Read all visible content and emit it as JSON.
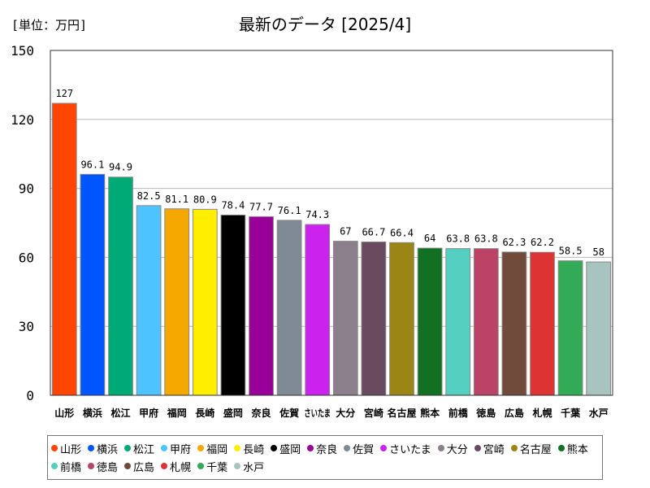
{
  "unit_label": "[単位：万円]",
  "chart_data": {
    "type": "bar",
    "title": "最新のデータ [2025/4]",
    "xlabel": "",
    "ylabel": "",
    "ylim": [
      0,
      150
    ],
    "yticks": [
      0,
      30,
      60,
      90,
      120,
      150
    ],
    "grid": true,
    "legend": "bottom",
    "categories": [
      "山形",
      "横浜",
      "松江",
      "甲府",
      "福岡",
      "長崎",
      "盛岡",
      "奈良",
      "佐賀",
      "さいたま",
      "大分",
      "宮崎",
      "名古屋",
      "熊本",
      "前橋",
      "徳島",
      "広島",
      "札幌",
      "千葉",
      "水戸"
    ],
    "values": [
      127,
      96.1,
      94.9,
      82.5,
      81.1,
      80.9,
      78.4,
      77.7,
      76.1,
      74.3,
      67,
      66.7,
      66.4,
      64,
      63.8,
      63.8,
      62.3,
      62.2,
      58.5,
      58
    ],
    "value_labels": [
      "127",
      "96.1",
      "94.9",
      "82.5",
      "81.1",
      "80.9",
      "78.4",
      "77.7",
      "76.1",
      "74.3",
      "67",
      "66.7",
      "66.4",
      "64",
      "63.8",
      "63.8",
      "62.3",
      "62.2",
      "58.5",
      "58"
    ],
    "colors": [
      "#ff4500",
      "#0055ff",
      "#00aa77",
      "#4dc4ff",
      "#f5a800",
      "#ffee00",
      "#000000",
      "#990099",
      "#808a95",
      "#cc22ee",
      "#8a7f8a",
      "#6a4a5f",
      "#9a8515",
      "#117022",
      "#55d0c0",
      "#bb4466",
      "#704a3a",
      "#dd3333",
      "#33aa55",
      "#a8c4c0"
    ]
  }
}
